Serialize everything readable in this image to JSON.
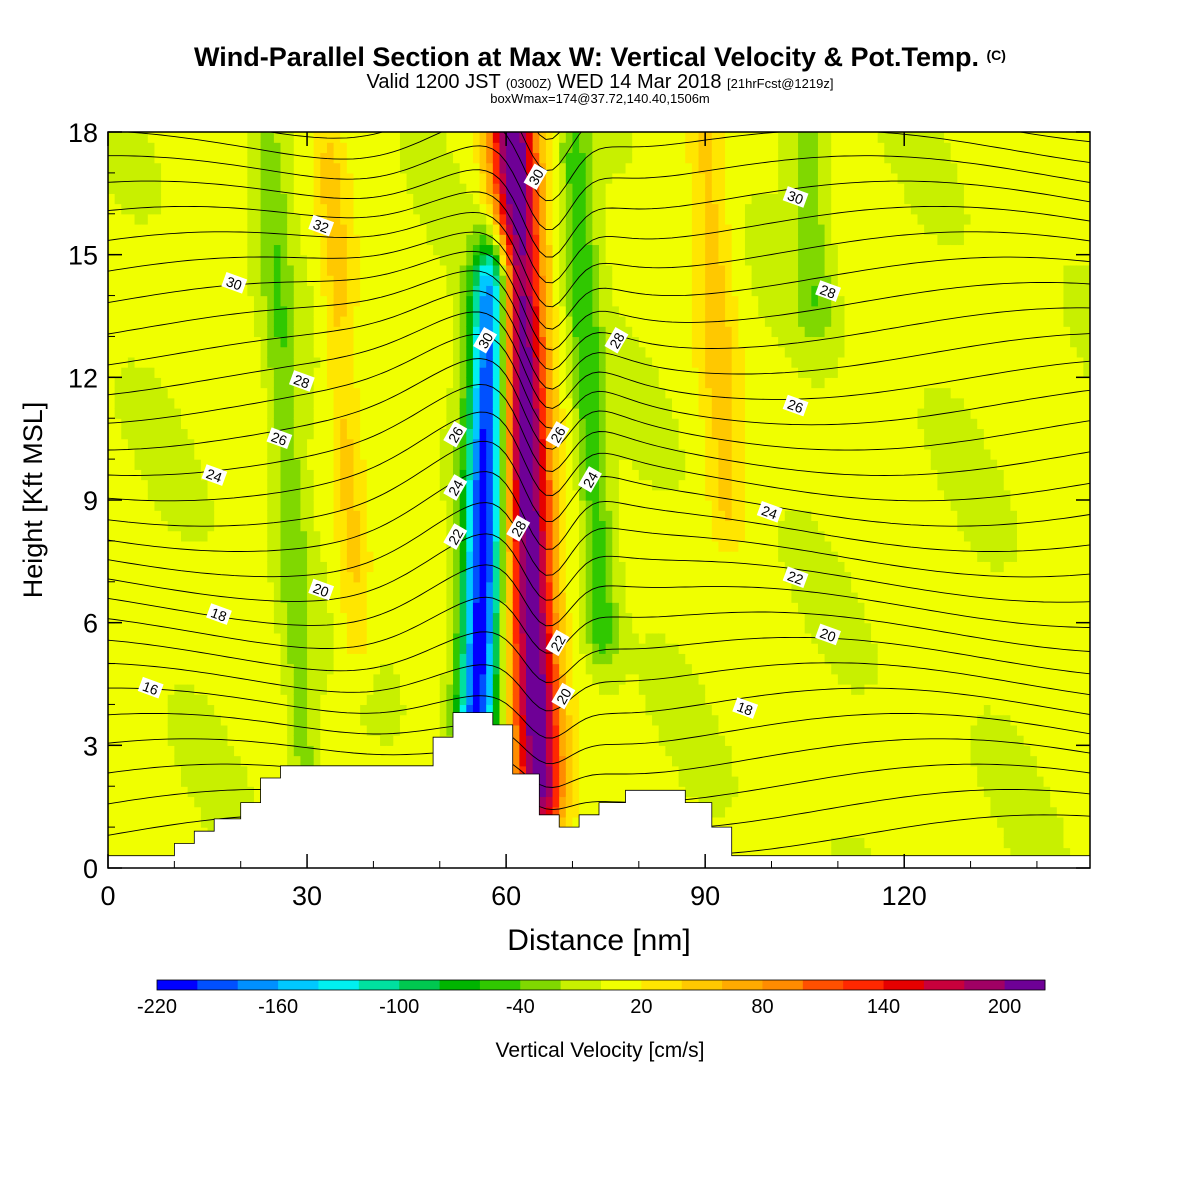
{
  "header": {
    "title_main": "Wind-Parallel Section at Max W: Vertical Velocity & Pot.Temp.",
    "title_mark": "(C)",
    "valid_a": "Valid 1200 JST",
    "valid_b": "(0300Z)",
    "valid_c": "WED 14 Mar 2018",
    "valid_d": "[21hrFcst@1219z]",
    "boxline": "boxWmax=174@37.72,140.40,1506m"
  },
  "chart_data": {
    "type": "heatmap",
    "xlabel": "Distance [nm]",
    "ylabel": "Height [Kft MSL]",
    "xlim": [
      0,
      148
    ],
    "ylim": [
      0,
      18
    ],
    "x_ticks": [
      0,
      30,
      60,
      90,
      120
    ],
    "y_ticks": [
      0,
      3,
      6,
      9,
      12,
      15,
      18
    ],
    "colorbar": {
      "label": "Vertical Velocity [cm/s]",
      "ticks": [
        -220,
        -160,
        -100,
        -40,
        20,
        80,
        140,
        200
      ],
      "levels": [
        -220,
        -200,
        -180,
        -160,
        -140,
        -120,
        -100,
        -80,
        -60,
        -40,
        -20,
        0,
        20,
        40,
        60,
        80,
        100,
        120,
        140,
        160,
        180,
        200,
        220
      ],
      "colors": [
        "#0000ff",
        "#0050ff",
        "#0090ff",
        "#00c8ff",
        "#00f0f0",
        "#00e0a0",
        "#00c850",
        "#00b400",
        "#30c800",
        "#80d800",
        "#c8f000",
        "#f0ff00",
        "#ffe600",
        "#ffc800",
        "#ffaa00",
        "#ff8c00",
        "#ff5000",
        "#ff2800",
        "#e60000",
        "#c8003c",
        "#a00064",
        "#6e0096"
      ]
    },
    "terrain_profile": [
      [
        0,
        0.3
      ],
      [
        10,
        0.3
      ],
      [
        10,
        0.6
      ],
      [
        13,
        0.6
      ],
      [
        13,
        0.9
      ],
      [
        16,
        0.9
      ],
      [
        16,
        1.2
      ],
      [
        20,
        1.2
      ],
      [
        20,
        1.6
      ],
      [
        23,
        1.6
      ],
      [
        23,
        2.2
      ],
      [
        26,
        2.2
      ],
      [
        26,
        2.5
      ],
      [
        49,
        2.5
      ],
      [
        49,
        3.2
      ],
      [
        52,
        3.2
      ],
      [
        52,
        3.8
      ],
      [
        58,
        3.8
      ],
      [
        58,
        3.5
      ],
      [
        61,
        3.5
      ],
      [
        61,
        2.3
      ],
      [
        65,
        2.3
      ],
      [
        65,
        1.3
      ],
      [
        68,
        1.3
      ],
      [
        68,
        1.0
      ],
      [
        71,
        1.0
      ],
      [
        71,
        1.3
      ],
      [
        74,
        1.3
      ],
      [
        74,
        1.6
      ],
      [
        78,
        1.6
      ],
      [
        78,
        1.9
      ],
      [
        87,
        1.9
      ],
      [
        87,
        1.6
      ],
      [
        91,
        1.6
      ],
      [
        91,
        1.0
      ],
      [
        94,
        1.0
      ],
      [
        94,
        0.3
      ],
      [
        148,
        0.3
      ]
    ],
    "w_features": [
      {
        "x": 63,
        "width": 7,
        "w": 220,
        "height_range": [
          2,
          18
        ],
        "description": "updraft"
      },
      {
        "x": 57,
        "width": 6,
        "w": -220,
        "height_range": [
          4,
          14
        ]
      },
      {
        "x": 73,
        "width": 5,
        "w": -60,
        "height_range": [
          6,
          17
        ]
      },
      {
        "x": 36,
        "width": 5,
        "w": 40,
        "height_range": [
          6,
          17
        ]
      },
      {
        "x": 27,
        "width": 5,
        "w": -40,
        "height_range": [
          1,
          17
        ]
      },
      {
        "x": 93,
        "width": 6,
        "w": 40,
        "height_range": [
          9,
          18
        ]
      },
      {
        "x": 108,
        "width": 6,
        "w": -40,
        "height_range": [
          14,
          18
        ]
      }
    ],
    "theta_labels": [
      {
        "value": "16",
        "x": 6.4,
        "y": 4.4
      },
      {
        "value": "18",
        "x": 16.7,
        "y": 6.2
      },
      {
        "value": "20",
        "x": 32.1,
        "y": 6.8
      },
      {
        "value": "22",
        "x": 52.4,
        "y": 8.1
      },
      {
        "value": "24",
        "x": 16.0,
        "y": 9.6
      },
      {
        "value": "24",
        "x": 52.4,
        "y": 9.3
      },
      {
        "value": "26",
        "x": 25.8,
        "y": 10.5
      },
      {
        "value": "26",
        "x": 52.4,
        "y": 10.6
      },
      {
        "value": "28",
        "x": 29.2,
        "y": 11.9
      },
      {
        "value": "30",
        "x": 19.0,
        "y": 14.3
      },
      {
        "value": "32",
        "x": 32.1,
        "y": 15.7
      },
      {
        "value": "30",
        "x": 56.9,
        "y": 12.9
      },
      {
        "value": "28",
        "x": 61.9,
        "y": 8.3
      },
      {
        "value": "26",
        "x": 67.8,
        "y": 10.6
      },
      {
        "value": "24",
        "x": 72.7,
        "y": 9.5
      },
      {
        "value": "22",
        "x": 67.8,
        "y": 5.5
      },
      {
        "value": "20",
        "x": 68.7,
        "y": 4.2
      },
      {
        "value": "30",
        "x": 64.5,
        "y": 16.9
      },
      {
        "value": "28",
        "x": 76.7,
        "y": 12.9
      },
      {
        "value": "30",
        "x": 103.6,
        "y": 16.4
      },
      {
        "value": "28",
        "x": 108.5,
        "y": 14.1
      },
      {
        "value": "26",
        "x": 103.6,
        "y": 11.3
      },
      {
        "value": "24",
        "x": 99.7,
        "y": 8.7
      },
      {
        "value": "22",
        "x": 103.6,
        "y": 7.1
      },
      {
        "value": "20",
        "x": 108.5,
        "y": 5.7
      },
      {
        "value": "18",
        "x": 96.0,
        "y": 3.9
      }
    ]
  }
}
